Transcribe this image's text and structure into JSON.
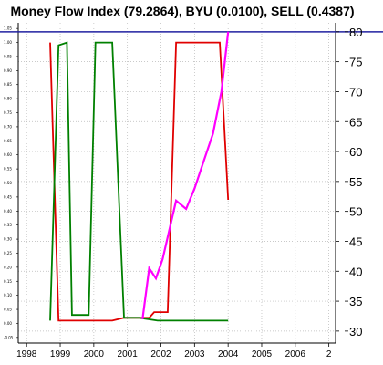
{
  "chart_data": {
    "type": "line",
    "title": "Money Flow Index (79.2864), BYU (0.0100), SELL (0.4387)",
    "xlabel": "",
    "ylabel": "",
    "x_ticks": [
      "1998",
      "1999",
      "2000",
      "2001",
      "2002",
      "2003",
      "2004",
      "2005",
      "2006",
      "2"
    ],
    "xlim": [
      1997.75,
      2007.2
    ],
    "left_axis": {
      "ylim": [
        -0.07,
        1.07
      ],
      "ticks": [
        "-0.05",
        "0.00",
        "0.05",
        "0.10",
        "0.15",
        "0.20",
        "0.25",
        "0.30",
        "0.35",
        "0.40",
        "0.45",
        "0.50",
        "0.55",
        "0.60",
        "0.65",
        "0.70",
        "0.75",
        "0.80",
        "0.85",
        "0.90",
        "0.95",
        "1.00",
        "1.05"
      ]
    },
    "right_axis": {
      "ylim": [
        28.0,
        81.5
      ],
      "ticks": [
        "30",
        "35",
        "40",
        "45",
        "50",
        "55",
        "60",
        "65",
        "70",
        "75",
        "80"
      ]
    },
    "reference_line": {
      "value": 80,
      "axis": "right",
      "color": "#2020a0"
    },
    "series": [
      {
        "axis": "left",
        "color": "#e00000",
        "x": [
          1998.7,
          1998.95,
          1999.4,
          1999.95,
          2000.1,
          2000.55,
          2000.9,
          2001.4,
          2001.65,
          2001.8,
          2002.2,
          2002.45,
          2003.75,
          2004.0
        ],
        "y": [
          1.0,
          0.01,
          0.01,
          0.01,
          0.01,
          0.01,
          0.02,
          0.02,
          0.02,
          0.04,
          0.04,
          1.0,
          1.0,
          0.44
        ]
      },
      {
        "axis": "left",
        "color": "#008000",
        "x": [
          1998.7,
          1998.95,
          1999.2,
          1999.35,
          1999.85,
          2000.05,
          2000.55,
          2000.9,
          2001.35,
          2001.9,
          2002.45,
          2004.0
        ],
        "y": [
          0.01,
          0.99,
          1.0,
          0.03,
          0.03,
          1.0,
          1.0,
          0.02,
          0.02,
          0.01,
          0.01,
          0.01
        ]
      },
      {
        "axis": "right",
        "color": "#ff00ff",
        "x": [
          2001.45,
          2001.65,
          2001.85,
          2002.05,
          2002.45,
          2002.75,
          2003.0,
          2003.25,
          2003.55,
          2003.8,
          2004.0
        ],
        "y": [
          32.0,
          40.5,
          38.8,
          42.0,
          51.8,
          50.4,
          53.8,
          58.0,
          63.0,
          70.0,
          80.0
        ]
      }
    ],
    "grid": true,
    "legend": "none"
  }
}
